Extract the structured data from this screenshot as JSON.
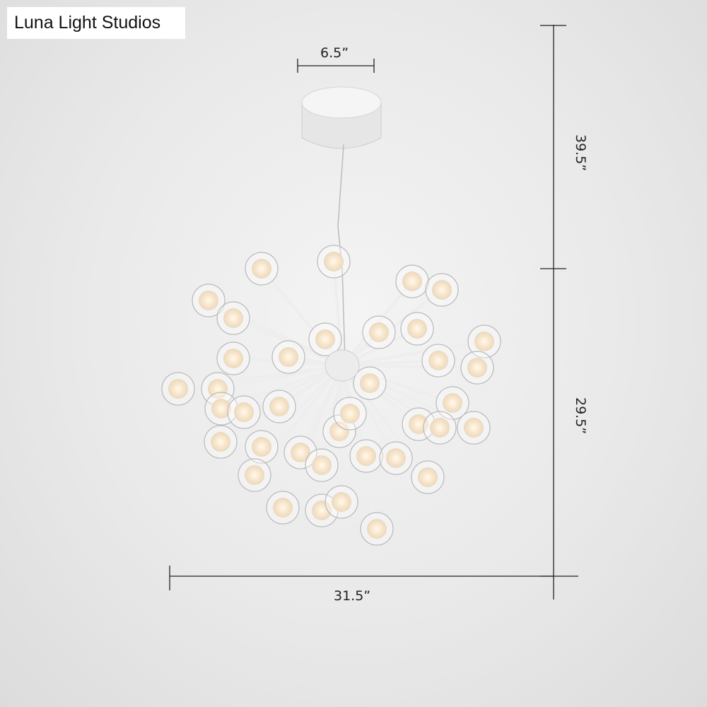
{
  "brand": {
    "label": "Luna Light Studios"
  },
  "dimensions": {
    "canopy_width": "6.5”",
    "cord_length": "39.5”",
    "fixture_height": "29.5”",
    "fixture_width": "31.5”"
  },
  "product": {
    "type": "globe-chandelier",
    "finish_color": "#f2f2f2",
    "glow_color": "#ffe9c8"
  }
}
